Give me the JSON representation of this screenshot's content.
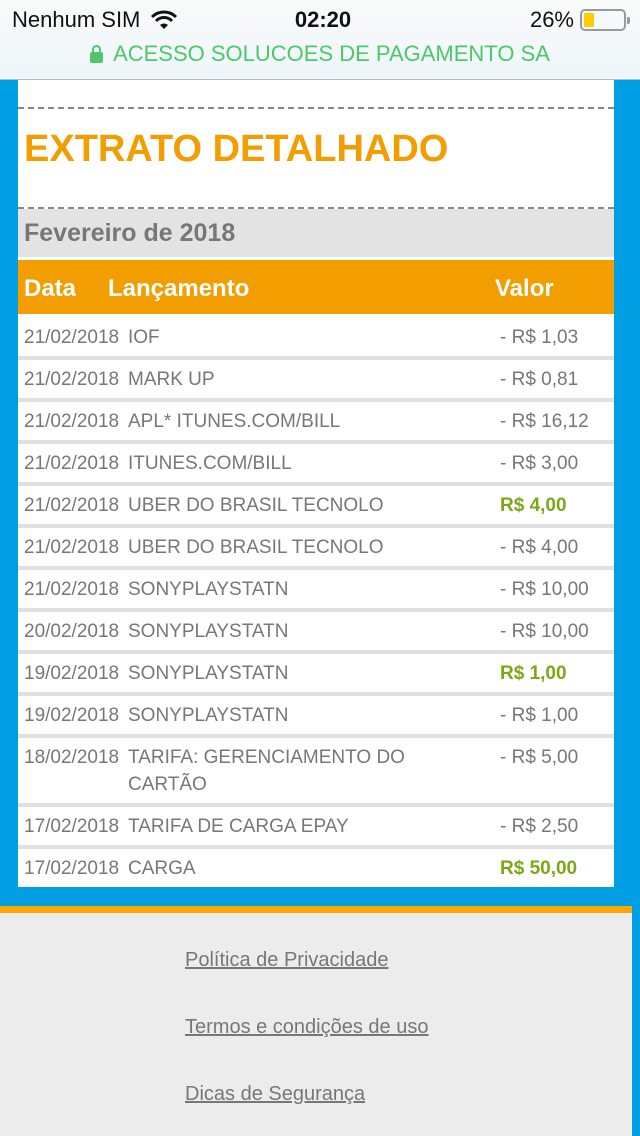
{
  "status_bar": {
    "carrier": "Nenhum SIM",
    "time": "02:20",
    "battery": "26%",
    "battery_level": 0.26,
    "url": "ACESSO SOLUCOES DE PAGAMENTO SA"
  },
  "page": {
    "title": "EXTRATO DETALHADO",
    "month": "Fevereiro de 2018"
  },
  "table": {
    "headers": {
      "date": "Data",
      "desc": "Lançamento",
      "value": "Valor"
    },
    "rows": [
      {
        "date": "21/02/2018",
        "desc": "IOF",
        "value": "- R$ 1,03",
        "credit": false
      },
      {
        "date": "21/02/2018",
        "desc": "MARK UP",
        "value": "- R$ 0,81",
        "credit": false
      },
      {
        "date": "21/02/2018",
        "desc": "APL* ITUNES.COM/BILL",
        "value": "- R$ 16,12",
        "credit": false
      },
      {
        "date": "21/02/2018",
        "desc": "ITUNES.COM/BILL",
        "value": "- R$ 3,00",
        "credit": false
      },
      {
        "date": "21/02/2018",
        "desc": "UBER DO BRASIL TECNOLO",
        "value": "R$ 4,00",
        "credit": true
      },
      {
        "date": "21/02/2018",
        "desc": "UBER DO BRASIL TECNOLO",
        "value": "- R$ 4,00",
        "credit": false
      },
      {
        "date": "21/02/2018",
        "desc": "SONYPLAYSTATN",
        "value": "- R$ 10,00",
        "credit": false
      },
      {
        "date": "20/02/2018",
        "desc": "SONYPLAYSTATN",
        "value": "- R$ 10,00",
        "credit": false
      },
      {
        "date": "19/02/2018",
        "desc": "SONYPLAYSTATN",
        "value": "R$ 1,00",
        "credit": true
      },
      {
        "date": "19/02/2018",
        "desc": "SONYPLAYSTATN",
        "value": "- R$ 1,00",
        "credit": false
      },
      {
        "date": "18/02/2018",
        "desc": "TARIFA: GERENCIAMENTO DO CARTÃO",
        "value": "- R$ 5,00",
        "credit": false
      },
      {
        "date": "17/02/2018",
        "desc": "TARIFA DE CARGA EPAY",
        "value": "- R$ 2,50",
        "credit": false
      },
      {
        "date": "17/02/2018",
        "desc": "CARGA",
        "value": "R$ 50,00",
        "credit": true
      }
    ]
  },
  "footer": {
    "links": [
      "Política de Privacidade",
      "Termos e condições de uso",
      "Dicas de Segurança"
    ]
  },
  "colors": {
    "accent": "#f29d00",
    "background": "#009fe3",
    "credit": "#7aa816",
    "secure": "#4cc86a"
  }
}
